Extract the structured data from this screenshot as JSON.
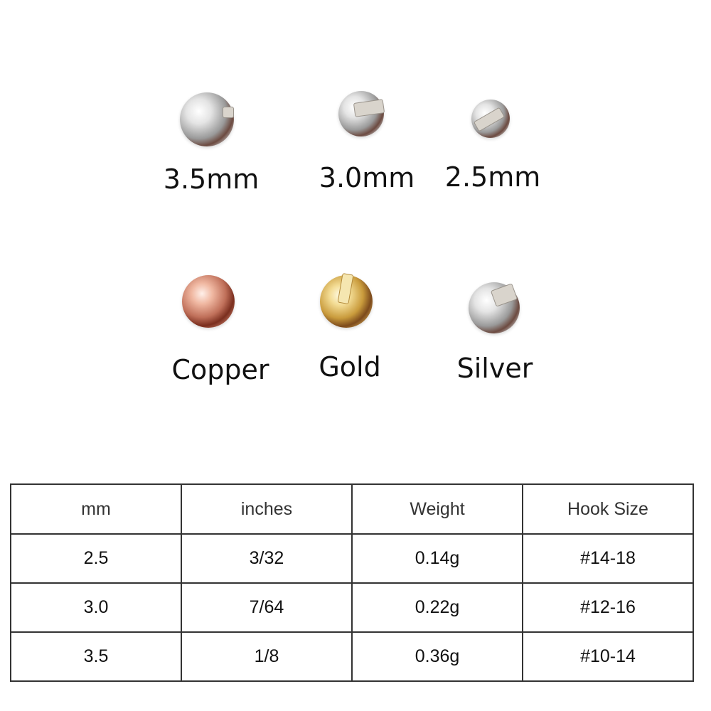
{
  "sizes": [
    {
      "label": "3.5mm",
      "finish": "silver"
    },
    {
      "label": "3.0mm",
      "finish": "silver"
    },
    {
      "label": "2.5mm",
      "finish": "silver"
    }
  ],
  "colors": [
    {
      "label": "Copper",
      "hex": "#c0705a"
    },
    {
      "label": "Gold",
      "hex": "#c99b3c"
    },
    {
      "label": "Silver",
      "hex": "#b0b0b0"
    }
  ],
  "table": {
    "headers": [
      "mm",
      "inches",
      "Weight",
      "Hook Size"
    ],
    "rows": [
      [
        "2.5",
        "3/32",
        "0.14g",
        "#14-18"
      ],
      [
        "3.0",
        "7/64",
        "0.22g",
        "#12-16"
      ],
      [
        "3.5",
        "1/8",
        "0.36g",
        "#10-14"
      ]
    ]
  }
}
